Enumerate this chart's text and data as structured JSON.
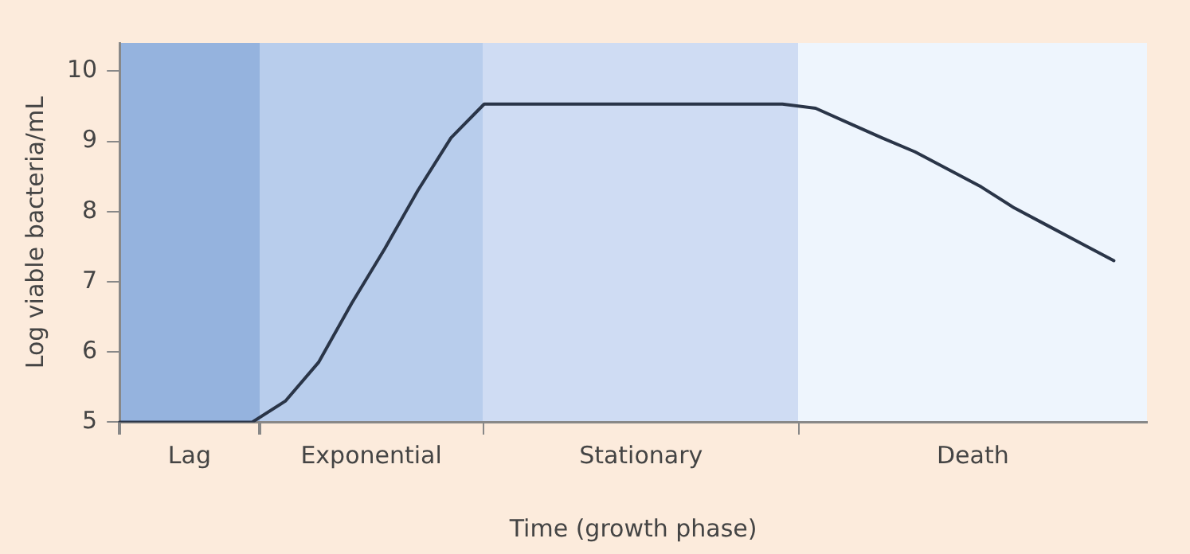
{
  "chart_data": {
    "type": "line",
    "xlabel": "Time (growth phase)",
    "ylabel": "Log viable bacteria/mL",
    "categories": [
      null,
      null,
      null,
      null,
      null,
      null,
      null,
      null,
      null,
      null,
      null,
      null,
      null,
      null,
      null,
      null,
      null,
      null,
      null,
      null,
      null,
      null,
      null,
      null,
      null,
      null,
      null,
      null,
      null,
      null,
      null,
      null
    ],
    "series": [
      {
        "color": "#2a3548",
        "values": [
          5,
          5,
          5,
          5,
          5,
          5.3,
          5.85,
          6.69,
          7.47,
          8.3,
          9.05,
          9.53,
          9.53,
          9.53,
          9.53,
          9.53,
          9.53,
          9.53,
          9.53,
          9.53,
          9.53,
          9.47,
          9.26,
          9.05,
          8.85,
          8.6,
          8.35,
          8.05,
          7.8,
          7.55,
          7.3,
          null
        ]
      }
    ],
    "ylim": [
      5,
      10.4
    ],
    "yticks": [
      5,
      6,
      7,
      8,
      9,
      10
    ],
    "annotations": [
      "Lag",
      "Exponential",
      "Stationary",
      "Death"
    ],
    "grid": false,
    "legend": false,
    "marker": "none",
    "line_style": "solid"
  }
}
